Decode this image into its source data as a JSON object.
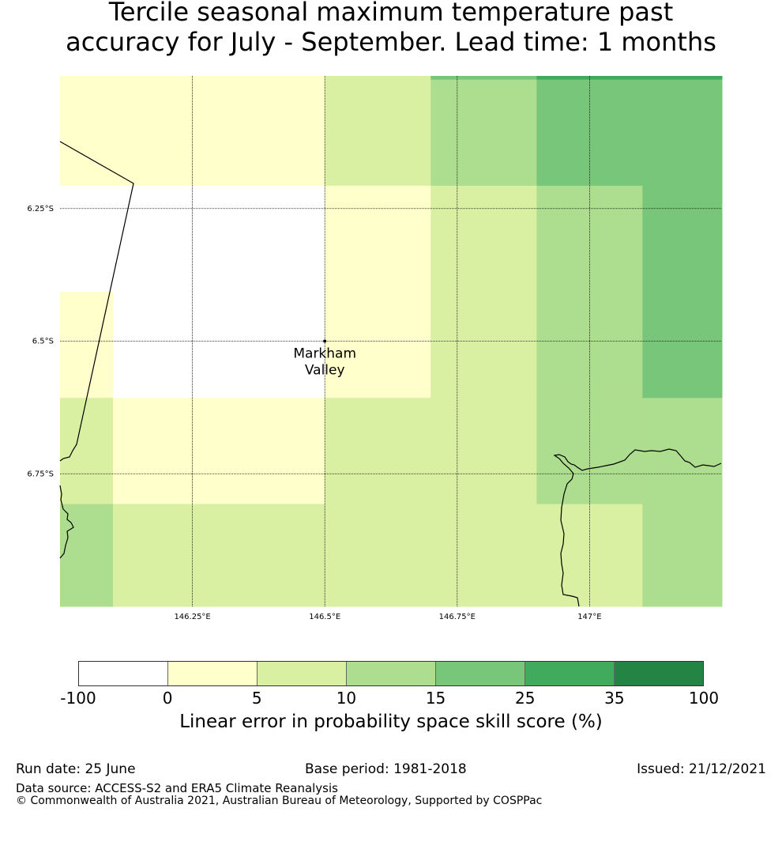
{
  "title": {
    "line1": "Tercile seasonal maximum temperature past",
    "line2": "accuracy for July - September. Lead time: 1 months"
  },
  "map": {
    "lon_range": [
      146.0,
      147.25
    ],
    "lat_range": [
      -6.0,
      -7.0
    ],
    "lon_ticks": [
      {
        "value": 146.25,
        "label": "146.25°E"
      },
      {
        "value": 146.5,
        "label": "146.5°E"
      },
      {
        "value": 146.75,
        "label": "146.75°E"
      },
      {
        "value": 147.0,
        "label": "147°E"
      }
    ],
    "lat_ticks": [
      {
        "value": -6.25,
        "label": "6.25°S"
      },
      {
        "value": -6.5,
        "label": "6.5°S"
      },
      {
        "value": -6.75,
        "label": "6.75°S"
      }
    ],
    "location": {
      "name_line1": "Markham",
      "name_line2": "Valley",
      "lon": 146.5,
      "lat": -6.5
    },
    "grid_columns": [
      [
        146.0,
        146.1
      ],
      [
        146.1,
        146.3
      ],
      [
        146.3,
        146.5
      ],
      [
        146.5,
        146.7
      ],
      [
        146.7,
        146.9
      ],
      [
        146.9,
        147.1
      ],
      [
        147.1,
        147.25
      ]
    ],
    "grid_rows": [
      [
        -6.0,
        -6.007
      ],
      [
        -6.007,
        -6.207
      ],
      [
        -6.207,
        -6.407
      ],
      [
        -6.407,
        -6.607
      ],
      [
        -6.607,
        -6.807
      ],
      [
        -6.807,
        -7.0
      ]
    ],
    "grid_class": [
      [
        1,
        1,
        1,
        2,
        4,
        5,
        5
      ],
      [
        1,
        1,
        1,
        2,
        3,
        4,
        4
      ],
      [
        0,
        0,
        0,
        1,
        2,
        3,
        4
      ],
      [
        1,
        0,
        0,
        1,
        2,
        3,
        4
      ],
      [
        2,
        1,
        1,
        2,
        2,
        3,
        3
      ],
      [
        3,
        2,
        2,
        2,
        2,
        2,
        3
      ]
    ]
  },
  "colorbar": {
    "colors": [
      "#ffffff",
      "#ffffcc",
      "#d9f0a3",
      "#addd8e",
      "#78c679",
      "#41ab5d",
      "#238443"
    ],
    "ticks": [
      "-100",
      "0",
      "5",
      "10",
      "15",
      "25",
      "35",
      "100"
    ],
    "label": "Linear error in probability space skill score (%)"
  },
  "footer": {
    "run_date": "Run date: 25 June",
    "base_period": "Base period: 1981-2018",
    "issued": "Issued: 21/12/2021",
    "data_source": "Data source: ACCESS-S2 and ERA5 Climate Reanalysis",
    "copyright": "© Commonwealth of Australia 2021, Australian Bureau of Meteorology, Supported by COSPPac"
  }
}
